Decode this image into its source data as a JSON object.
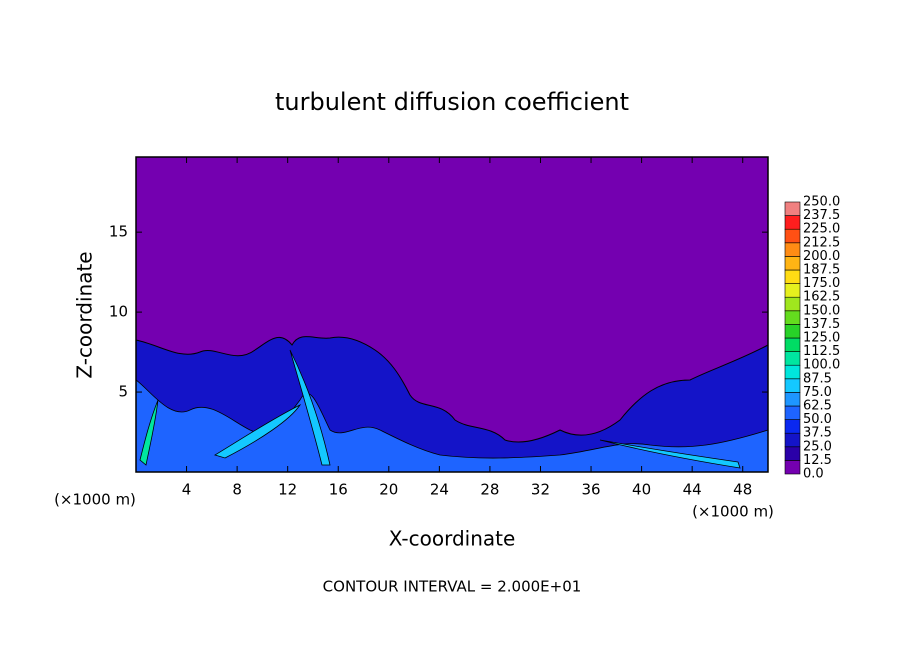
{
  "chart_data": {
    "type": "contour",
    "title": "turbulent diffusion coefficient",
    "x_label": "X-coordinate",
    "y_label": "Z-coordinate",
    "x_unit_left": "(×1000 m)",
    "x_unit_right": "(×1000 m)",
    "annotation": "CONTOUR INTERVAL = 2.000E+01",
    "xlim": [
      0,
      50
    ],
    "xticks": [
      4,
      8,
      12,
      16,
      20,
      24,
      28,
      32,
      36,
      40,
      44,
      48
    ],
    "ylim": [
      0,
      19.7
    ],
    "yticks": [
      5,
      10,
      15
    ],
    "colorbar": {
      "levels": [
        {
          "value": 0,
          "label": "0.0"
        },
        {
          "value": 12.5,
          "label": "12.5"
        },
        {
          "value": 25,
          "label": "25.0"
        },
        {
          "value": 37.5,
          "label": "37.5"
        },
        {
          "value": 50,
          "label": "50.0"
        },
        {
          "value": 62.5,
          "label": "62.5"
        },
        {
          "value": 75,
          "label": "75.0"
        },
        {
          "value": 87.5,
          "label": "87.5"
        },
        {
          "value": 100,
          "label": "100.0"
        },
        {
          "value": 112.5,
          "label": "112.5"
        },
        {
          "value": 125,
          "label": "125.0"
        },
        {
          "value": 137.5,
          "label": "137.5"
        },
        {
          "value": 150,
          "label": "150.0"
        },
        {
          "value": 162.5,
          "label": "162.5"
        },
        {
          "value": 175,
          "label": "175.0"
        },
        {
          "value": 187.5,
          "label": "187.5"
        },
        {
          "value": 200,
          "label": "200.0"
        },
        {
          "value": 212.5,
          "label": "212.5"
        },
        {
          "value": 225,
          "label": "225.0"
        },
        {
          "value": 237.5,
          "label": "237.5"
        },
        {
          "value": 250,
          "label": "250.0"
        }
      ],
      "colors": [
        "#7400b0",
        "#2a00a8",
        "#1414c8",
        "#0a28f0",
        "#1e64ff",
        "#1e96ff",
        "#14c8ff",
        "#00e6dc",
        "#00e6a0",
        "#00dc64",
        "#28d228",
        "#64dc1e",
        "#a0e61e",
        "#e6f01e",
        "#ffdc14",
        "#ffb414",
        "#ff8c14",
        "#ff5014",
        "#ff1e1e",
        "#f08080"
      ]
    }
  }
}
